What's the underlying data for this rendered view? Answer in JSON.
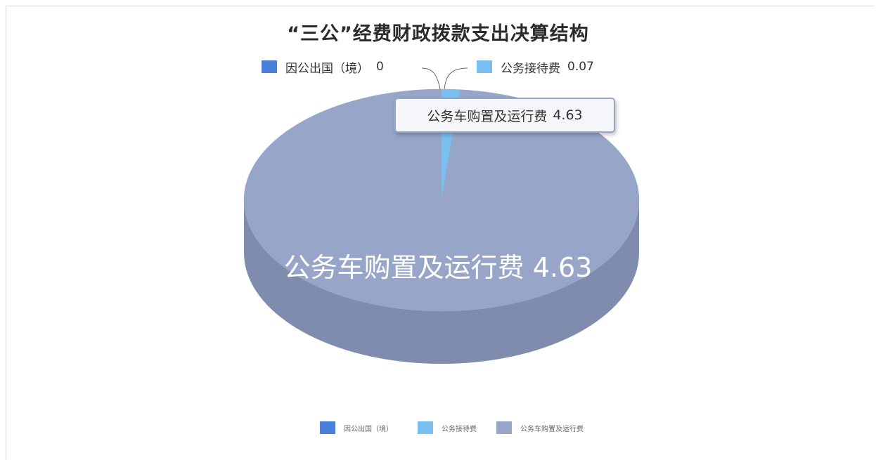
{
  "chart_data": {
    "type": "pie",
    "title": "“三公”经费财政拨款支出决算结构",
    "slices": [
      {
        "label": "因公出国（境）",
        "value": 0,
        "color": "#4a7fdb"
      },
      {
        "label": "公务接待费",
        "value": 0.07,
        "color": "#79bff0"
      },
      {
        "label": "公务车购置及运行费",
        "value": 4.63,
        "color": "#97a6c8"
      }
    ],
    "top_legend": [
      {
        "label": "因公出国（境）",
        "value_text": "0"
      },
      {
        "label": "公务接待费",
        "value_text": "0.07"
      }
    ],
    "inner_label": "公务车购置及运行费 4.63",
    "tooltip": {
      "label": "公务车购置及运行费",
      "value_text": "4.63"
    },
    "bottom_legend": [
      "因公出国（境）",
      "公务接待费",
      "公务车购置及运行费"
    ],
    "legend_position": "bottom",
    "side_color": "#7f8cad",
    "inner_label_color": "#ffffff"
  }
}
